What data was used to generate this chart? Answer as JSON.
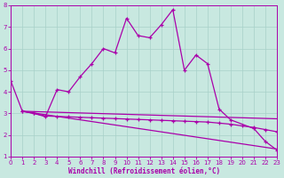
{
  "xlabel": "Windchill (Refroidissement éolien,°C)",
  "xlim": [
    0,
    23
  ],
  "ylim": [
    1,
    8
  ],
  "yticks": [
    1,
    2,
    3,
    4,
    5,
    6,
    7,
    8
  ],
  "xticks": [
    0,
    1,
    2,
    3,
    4,
    5,
    6,
    7,
    8,
    9,
    10,
    11,
    12,
    13,
    14,
    15,
    16,
    17,
    18,
    19,
    20,
    21,
    22,
    23
  ],
  "bg_color": "#c8e8e0",
  "grid_color": "#a8d0c8",
  "line_color": "#aa00aa",
  "main_x": [
    0,
    1,
    2,
    3,
    4,
    5,
    6,
    7,
    8,
    9,
    10,
    11,
    12,
    13,
    14,
    15,
    16,
    17,
    18,
    19,
    21,
    22,
    23
  ],
  "main_y": [
    4.5,
    3.1,
    3.0,
    2.85,
    4.1,
    4.0,
    4.7,
    5.3,
    6.0,
    5.8,
    7.4,
    6.6,
    6.5,
    7.1,
    7.8,
    5.0,
    5.7,
    5.3,
    3.2,
    2.7,
    2.3,
    1.7,
    1.3
  ],
  "line2_x": [
    1,
    2,
    3,
    4,
    5,
    6,
    7,
    8,
    9,
    10,
    11,
    12,
    13,
    14,
    15,
    16,
    17,
    18,
    19,
    20,
    21,
    22,
    23
  ],
  "line2_y": [
    3.1,
    3.0,
    2.88,
    2.86,
    2.84,
    2.82,
    2.8,
    2.78,
    2.76,
    2.74,
    2.72,
    2.7,
    2.68,
    2.66,
    2.64,
    2.62,
    2.6,
    2.55,
    2.5,
    2.42,
    2.35,
    2.25,
    2.15
  ],
  "line3_x": [
    1,
    23
  ],
  "line3_y": [
    3.1,
    1.35
  ],
  "line4_x": [
    1,
    23
  ],
  "line4_y": [
    3.1,
    2.75
  ]
}
